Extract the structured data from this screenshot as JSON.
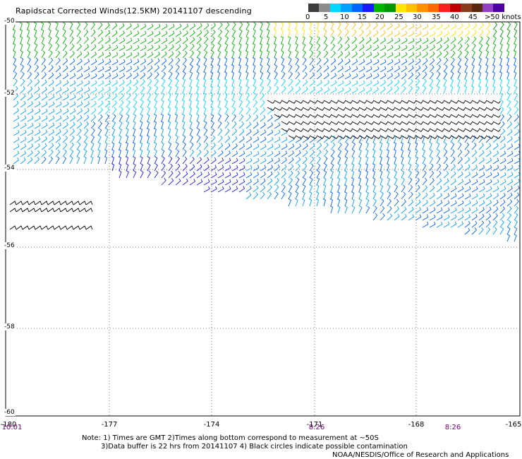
{
  "title": "Rapidscat Corrected Winds(12.5KM) 20141107 descending",
  "colorbar": {
    "labels": [
      "0",
      "5",
      "10",
      "15",
      "20",
      "25",
      "30",
      "35",
      "40",
      "45",
      ">50 knots"
    ],
    "colors": [
      "#3c3c3c",
      "#8c8c8c",
      "#00d8ff",
      "#00a0ff",
      "#0064ff",
      "#1a1aff",
      "#00b400",
      "#009600",
      "#ffe600",
      "#ffc000",
      "#ff9000",
      "#ff6a00",
      "#ff2020",
      "#c00000",
      "#8a3c1e",
      "#5a2810",
      "#9040c0",
      "#5000a0"
    ]
  },
  "axes": {
    "lat_labels": [
      "-50",
      "-52",
      "-54",
      "-56",
      "-58",
      "-60"
    ],
    "lon_labels": [
      "-180",
      "-177",
      "-174",
      "-171",
      "-168",
      "-165"
    ],
    "time_labels": [
      "10:01",
      "8:26",
      "8:26"
    ]
  },
  "notes": {
    "line1": "Note: 1) Times are GMT 2)Times along bottom correspond to measurement at ~50S",
    "line2": "3)Data buffer is 22 hrs from 20141107 4) Black circles indicate possible contamination",
    "credit": "NOAA/NESDIS/Office of Research and Applications"
  }
}
